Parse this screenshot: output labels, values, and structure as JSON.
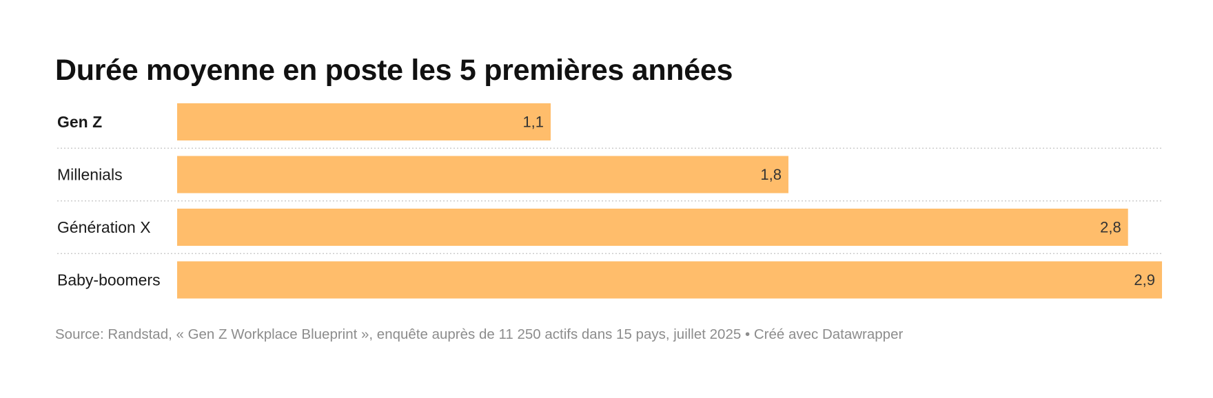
{
  "chart_data": {
    "type": "bar",
    "orientation": "horizontal",
    "title": "Durée moyenne en poste les 5 premières années",
    "categories": [
      "Gen Z",
      "Millenials",
      "Génération X",
      "Baby-boomers"
    ],
    "values": [
      1.1,
      1.8,
      2.8,
      2.9
    ],
    "value_labels": [
      "1,1",
      "1,8",
      "2,8",
      "2,9"
    ],
    "highlighted_category": "Gen Z",
    "xlim": [
      0,
      2.9
    ],
    "grid": false,
    "bar_color": "#ffbd6b",
    "separator_color": "#cccccc"
  },
  "footer": {
    "source": "Source: Randstad, « Gen Z Workplace Blueprint », enquête auprès de 11 250 actifs dans 15 pays, juillet 2025 • Créé avec Datawrapper"
  }
}
